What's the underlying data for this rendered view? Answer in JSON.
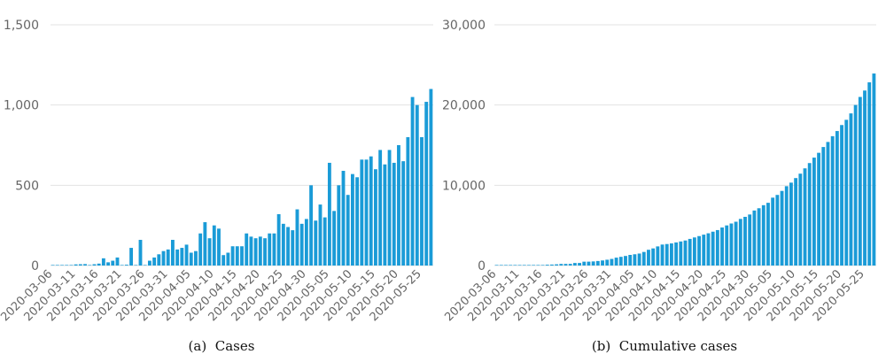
{
  "chart_data": [
    {
      "type": "bar",
      "caption_label": "(a)",
      "caption": "Cases",
      "color": "#1a9bd7",
      "xlabel": "",
      "ylabel": "",
      "ylim": [
        0,
        1500
      ],
      "yticks": [
        "0",
        "500",
        "1,000",
        "1,500"
      ],
      "ytick_values": [
        0,
        500,
        1000,
        1500
      ],
      "xtick_labels": [
        "2020-03-06",
        "2020-03-11",
        "2020-03-16",
        "2020-03-21",
        "2020-03-26",
        "2020-03-31",
        "2020-04-05",
        "2020-04-10",
        "2020-04-15",
        "2020-04-20",
        "2020-04-25",
        "2020-04-30",
        "2020-05-05",
        "2020-05-10",
        "2020-05-15",
        "2020-05-20",
        "2020-05-25"
      ],
      "x_start": "2020-03-06",
      "values": [
        2,
        1,
        1,
        3,
        2,
        7,
        8,
        9,
        2,
        8,
        12,
        45,
        20,
        30,
        50,
        2,
        5,
        110,
        3,
        160,
        3,
        30,
        50,
        70,
        90,
        100,
        160,
        100,
        110,
        130,
        80,
        90,
        200,
        270,
        170,
        250,
        230,
        65,
        80,
        120,
        120,
        120,
        200,
        180,
        170,
        180,
        170,
        200,
        200,
        320,
        260,
        240,
        220,
        350,
        260,
        290,
        500,
        280,
        380,
        300,
        640,
        340,
        500,
        590,
        440,
        570,
        550,
        660,
        660,
        680,
        600,
        720,
        630,
        720,
        640,
        750,
        650,
        800,
        1050,
        1000,
        800,
        1020,
        1100
      ]
    },
    {
      "type": "bar",
      "caption_label": "(b)",
      "caption": "Cumulative cases",
      "color": "#1a9bd7",
      "xlabel": "",
      "ylabel": "",
      "ylim": [
        0,
        30000
      ],
      "yticks": [
        "0",
        "10,000",
        "20,000",
        "30,000"
      ],
      "ytick_values": [
        0,
        10000,
        20000,
        30000
      ],
      "xtick_labels": [
        "2020-03-06",
        "2020-03-11",
        "2020-03-16",
        "2020-03-21",
        "2020-03-26",
        "2020-03-31",
        "2020-04-05",
        "2020-04-10",
        "2020-04-15",
        "2020-04-20",
        "2020-04-25",
        "2020-04-30",
        "2020-05-05",
        "2020-05-10",
        "2020-05-15",
        "2020-05-20",
        "2020-05-25"
      ],
      "x_start": "2020-03-06",
      "values": [
        2,
        3,
        4,
        7,
        9,
        16,
        24,
        33,
        35,
        43,
        55,
        100,
        120,
        150,
        200,
        202,
        207,
        317,
        320,
        480,
        483,
        513,
        563,
        633,
        723,
        823,
        983,
        1083,
        1193,
        1323,
        1403,
        1493,
        1693,
        1963,
        2133,
        2383,
        2613,
        2678,
        2758,
        2878,
        2998,
        3118,
        3318,
        3498,
        3668,
        3848,
        4018,
        4218,
        4418,
        4738,
        4998,
        5238,
        5458,
        5808,
        6068,
        6358,
        6858,
        7138,
        7518,
        7818,
        8458,
        8798,
        9298,
        9888,
        10328,
        10898,
        11448,
        12108,
        12768,
        13448,
        14048,
        14768,
        15398,
        16118,
        16758,
        17508,
        18158,
        18958,
        20008,
        21008,
        21808,
        22828,
        23928
      ]
    }
  ]
}
